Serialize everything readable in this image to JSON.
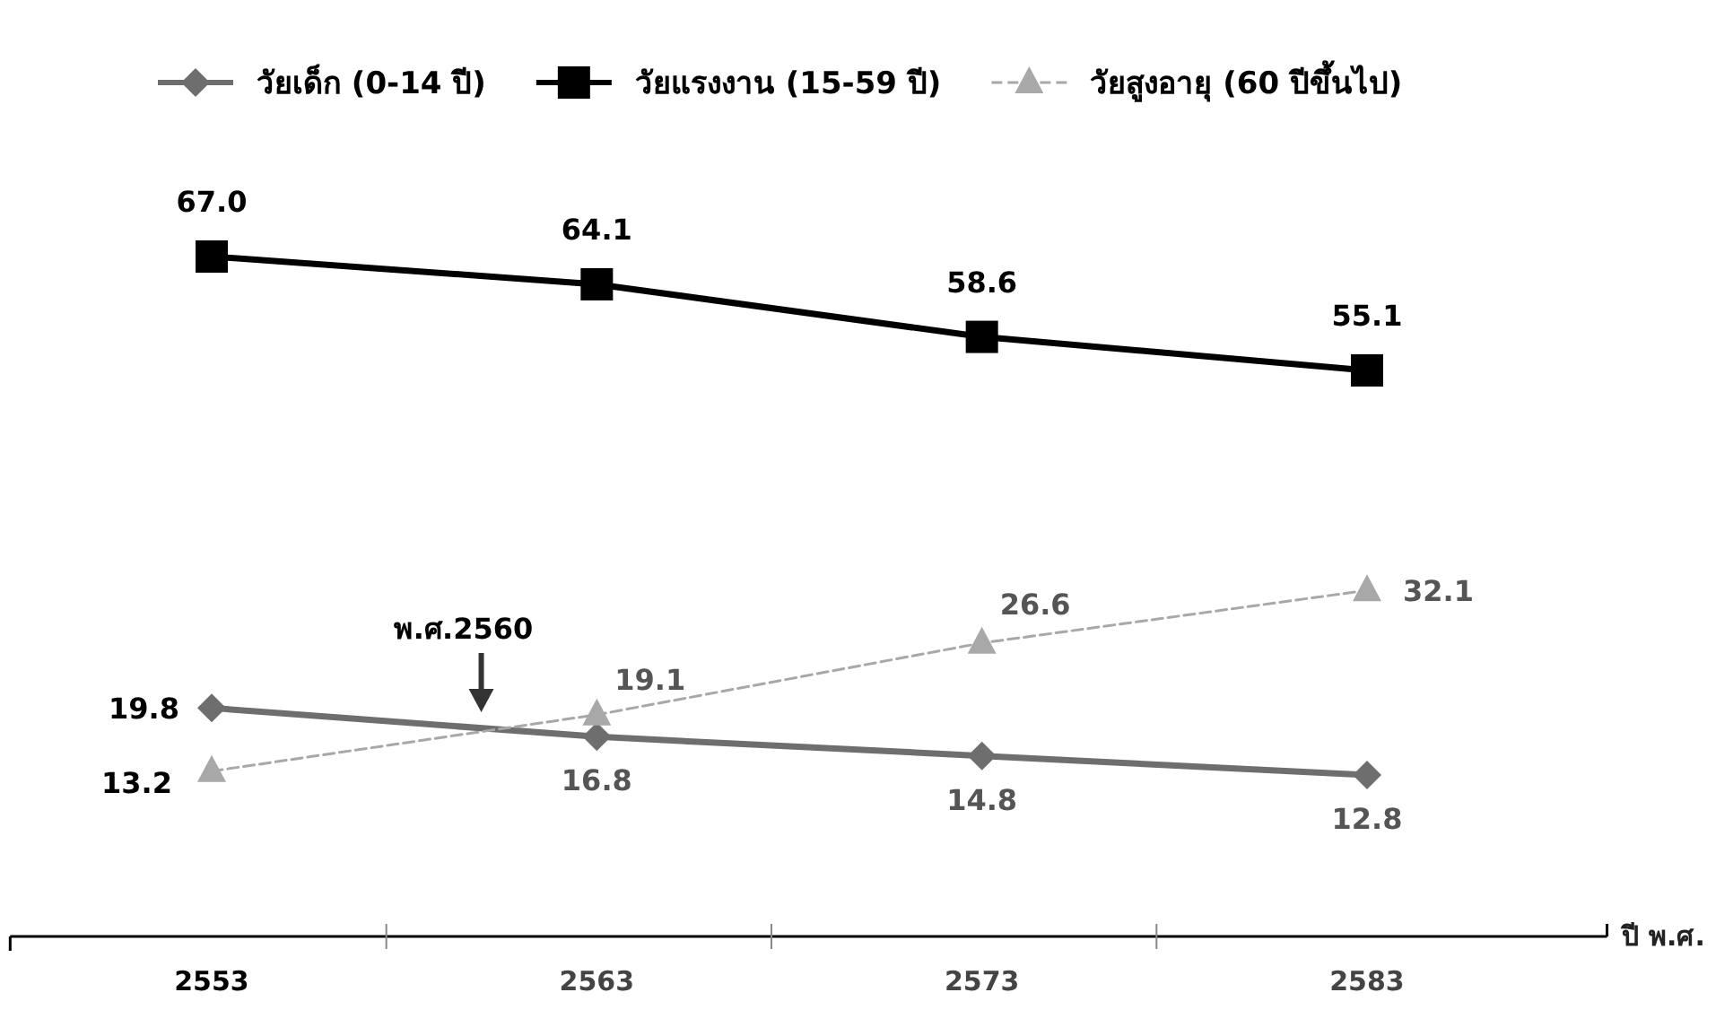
{
  "chart_data": {
    "type": "line",
    "categories": [
      "2553",
      "2563",
      "2573",
      "2583"
    ],
    "xlabel": "ปี พ.ศ.",
    "series": [
      {
        "name": "วัยเด็ก (0-14 ปี)",
        "color": "#6e6e6e",
        "marker": "diamond",
        "line_style": "solid",
        "values": [
          19.8,
          16.8,
          14.8,
          12.8
        ],
        "value_labels": [
          "19.8",
          "16.8",
          "14.8",
          "12.8"
        ]
      },
      {
        "name": "วัยแรงงาน (15-59 ปี)",
        "color": "#000000",
        "marker": "square",
        "line_style": "solid",
        "values": [
          67.0,
          64.1,
          58.6,
          55.1
        ],
        "value_labels": [
          "67.0",
          "64.1",
          "58.6",
          "55.1"
        ]
      },
      {
        "name": "วัยสูงอายุ (60 ปีขึ้นไป)",
        "color": "#a8a8a8",
        "marker": "triangle",
        "line_style": "dashed",
        "values": [
          13.2,
          19.1,
          26.6,
          32.1
        ],
        "value_labels": [
          "13.2",
          "19.1",
          "26.6",
          "32.1"
        ]
      }
    ],
    "annotations": [
      "พ.ศ.2560"
    ],
    "legend": "top",
    "tick_labels": "x"
  }
}
